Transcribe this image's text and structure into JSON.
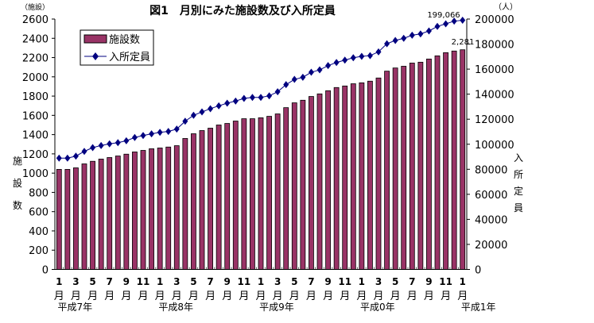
{
  "chart_data": {
    "type": "bar+line",
    "title": "図1　月別にみた施設数及び入所定員",
    "left_axis": {
      "label": "施設数",
      "unit": "（施設）",
      "range": [
        0,
        2600
      ],
      "step": 200
    },
    "right_axis": {
      "label": "入所定員",
      "unit": "（人）",
      "range": [
        0,
        200000
      ],
      "step": 20000
    },
    "x_tick_labels": [
      "1",
      "3",
      "5",
      "7",
      "9",
      "11",
      "1",
      "3",
      "5",
      "7",
      "9",
      "11",
      "1",
      "3",
      "5",
      "7",
      "9",
      "11",
      "1",
      "3",
      "5",
      "7",
      "9",
      "11",
      "1"
    ],
    "x_tick_suffix": "月",
    "year_labels": [
      {
        "label": "平成7年",
        "month_index": 0
      },
      {
        "label": "平成8年",
        "month_index": 12
      },
      {
        "label": "平成9年",
        "month_index": 24
      },
      {
        "label": "平成0年",
        "month_index": 36
      },
      {
        "label": "平成1年",
        "month_index": 48
      }
    ],
    "legend": {
      "placement": "top-left",
      "entries": [
        "施設数",
        "入所定員"
      ]
    },
    "series": [
      {
        "name": "施設数",
        "type": "bar",
        "axis": "left",
        "color": "#993366",
        "values": [
          1039,
          1039,
          1055,
          1096,
          1123,
          1146,
          1162,
          1178,
          1197,
          1220,
          1236,
          1253,
          1261,
          1271,
          1285,
          1360,
          1409,
          1442,
          1467,
          1500,
          1516,
          1541,
          1565,
          1565,
          1575,
          1590,
          1615,
          1680,
          1730,
          1757,
          1796,
          1823,
          1856,
          1889,
          1905,
          1928,
          1938,
          1955,
          1988,
          2059,
          2092,
          2110,
          2143,
          2152,
          2185,
          2218,
          2251,
          2268,
          2281
        ]
      },
      {
        "name": "入所定員",
        "type": "line",
        "axis": "right",
        "color": "#000080",
        "marker": "diamond",
        "values": [
          88900,
          88900,
          90500,
          94300,
          97300,
          99000,
          100300,
          101300,
          102800,
          105400,
          107000,
          108300,
          109500,
          110200,
          112100,
          118400,
          123100,
          125800,
          128400,
          130700,
          132800,
          134500,
          136600,
          137400,
          137400,
          138700,
          141900,
          147600,
          151800,
          153500,
          157500,
          159400,
          162800,
          165300,
          167200,
          169100,
          170200,
          170800,
          173800,
          180300,
          182900,
          184600,
          187100,
          188100,
          190500,
          194100,
          196200,
          198300,
          199066
        ]
      }
    ],
    "annotations": [
      {
        "text": "199,066",
        "series": "入所定員",
        "month_index": 48
      },
      {
        "text": "2,281",
        "series": "施設数",
        "month_index": 48
      }
    ],
    "grid": false
  }
}
